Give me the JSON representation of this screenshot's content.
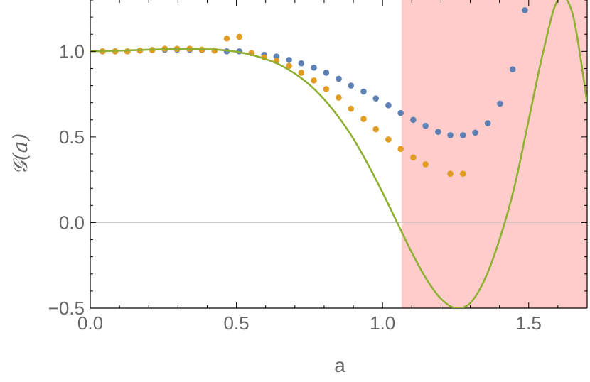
{
  "chart_data": {
    "type": "scatter",
    "xlabel": "a",
    "ylabel": "𝒢(a)",
    "xlim": [
      0.0,
      1.7
    ],
    "ylim": [
      -0.5,
      1.3
    ],
    "xticks": [
      0.0,
      0.5,
      1.0,
      1.5
    ],
    "xtick_labels": [
      "0.0",
      "0.5",
      "1.0",
      "1.5"
    ],
    "yticks": [
      -0.5,
      0.0,
      0.5,
      1.0
    ],
    "ytick_labels": [
      "−0.5",
      "0.0",
      "0.5",
      "1.0"
    ],
    "grid": false,
    "legend": "none",
    "shaded_region": {
      "x": [
        1.065,
        1.7
      ],
      "color": "#ffcccc"
    },
    "zero_line": {
      "y": 0.0,
      "color": "#c8c8c8"
    },
    "series": [
      {
        "kind": "points",
        "color": "#5e81b5",
        "x": [
          0.042,
          0.085,
          0.127,
          0.17,
          0.212,
          0.255,
          0.297,
          0.34,
          0.382,
          0.425,
          0.467,
          0.51,
          0.552,
          0.595,
          0.637,
          0.68,
          0.722,
          0.765,
          0.807,
          0.85,
          0.892,
          0.935,
          0.977,
          1.02,
          1.062,
          1.105,
          1.147,
          1.19,
          1.232,
          1.275,
          1.317,
          1.36,
          1.402,
          1.445,
          1.487
        ],
        "y": [
          1.0,
          1.0,
          1.0,
          1.005,
          1.008,
          1.01,
          1.01,
          1.01,
          1.008,
          1.005,
          1.0,
          1.0,
          0.99,
          0.98,
          0.97,
          0.95,
          0.93,
          0.905,
          0.875,
          0.84,
          0.8,
          0.765,
          0.725,
          0.685,
          0.64,
          0.6,
          0.565,
          0.53,
          0.51,
          0.51,
          0.525,
          0.58,
          0.695,
          0.895,
          1.24
        ]
      },
      {
        "kind": "points",
        "color": "#e19c24",
        "x": [
          0.042,
          0.085,
          0.127,
          0.17,
          0.212,
          0.255,
          0.297,
          0.34,
          0.382,
          0.425,
          0.467,
          0.51,
          0.552,
          0.595,
          0.637,
          0.68,
          0.722,
          0.765,
          0.807,
          0.85,
          0.892,
          0.935,
          0.977,
          1.02,
          1.062,
          1.105,
          1.147,
          1.232,
          1.275
        ],
        "y": [
          1.0,
          1.0,
          1.0,
          1.005,
          1.008,
          1.015,
          1.015,
          1.015,
          1.01,
          1.005,
          1.075,
          1.085,
          0.99,
          0.965,
          0.945,
          0.915,
          0.875,
          0.83,
          0.78,
          0.73,
          0.665,
          0.605,
          0.545,
          0.485,
          0.43,
          0.38,
          0.34,
          0.285,
          0.285
        ]
      },
      {
        "kind": "line",
        "color": "#8fb032",
        "x": [
          0.0,
          0.1,
          0.2,
          0.3,
          0.4,
          0.45,
          0.5,
          0.55,
          0.6,
          0.65,
          0.7,
          0.75,
          0.8,
          0.85,
          0.9,
          0.95,
          1.0,
          1.05,
          1.1,
          1.15,
          1.2,
          1.25,
          1.3,
          1.35,
          1.4,
          1.45,
          1.5,
          1.55,
          1.6,
          1.65,
          1.7
        ],
        "y": [
          1.0,
          1.004,
          1.01,
          1.013,
          1.012,
          1.008,
          0.998,
          0.98,
          0.955,
          0.92,
          0.87,
          0.805,
          0.72,
          0.615,
          0.49,
          0.34,
          0.175,
          0.0,
          -0.175,
          -0.33,
          -0.445,
          -0.5,
          -0.47,
          -0.33,
          -0.1,
          0.2,
          0.6,
          1.0,
          1.3,
          1.22,
          0.7
        ]
      }
    ]
  }
}
